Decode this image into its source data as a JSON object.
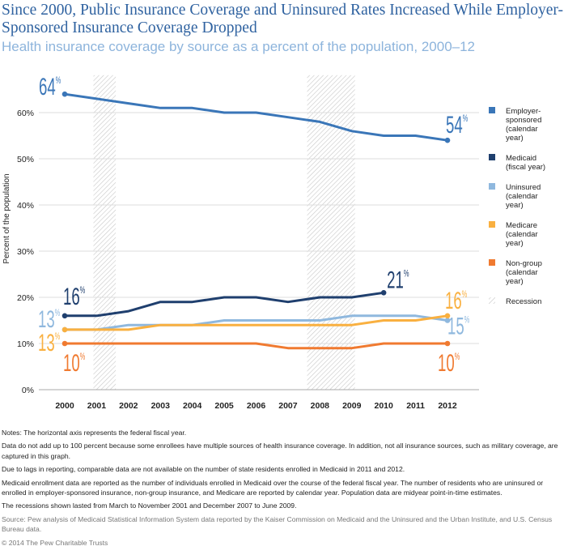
{
  "title": "Since 2000, Public Insurance Coverage and Uninsured Rates Increased While Employer-Sponsored Insurance Coverage Dropped",
  "subtitle": "Health insurance coverage by source as a percent of the population, 2000–12",
  "chart_data": {
    "type": "line",
    "title": "Since 2000, Public Insurance Coverage and Uninsured Rates Increased While Employer-Sponsored Insurance Coverage Dropped",
    "subtitle": "Health insurance coverage by source as a percent of the population, 2000–12",
    "xlabel": "",
    "ylabel": "Percent of the population",
    "x": [
      2000,
      2001,
      2002,
      2003,
      2004,
      2005,
      2006,
      2007,
      2008,
      2009,
      2010,
      2011,
      2012
    ],
    "xtick_labels": [
      "2000",
      "2001",
      "2002",
      "2003",
      "2004",
      "2005",
      "2006",
      "2007",
      "2008",
      "2009",
      "2010",
      "2011",
      "2012"
    ],
    "ylim": [
      0,
      66
    ],
    "yticks": [
      0,
      10,
      20,
      30,
      40,
      50,
      60
    ],
    "ytick_labels": [
      "0%",
      "10%",
      "20%",
      "30%",
      "40%",
      "50%",
      "60%"
    ],
    "grid": "horizontal",
    "legend_position": "right",
    "series": [
      {
        "name": "Employer-sponsored (calendar year)",
        "legend_lines": [
          "Employer-",
          "sponsored",
          "(calendar",
          "year)"
        ],
        "color": "#3a76b8",
        "values": [
          64,
          63,
          62,
          61,
          61,
          60,
          60,
          59,
          58,
          56,
          55,
          55,
          54
        ],
        "start_label": "64",
        "end_label": "54"
      },
      {
        "name": "Medicaid (fiscal year)",
        "legend_lines": [
          "Medicaid",
          "(fiscal year)"
        ],
        "color": "#1f3f6e",
        "values": [
          16,
          16,
          17,
          19,
          19,
          20,
          20,
          19,
          20,
          20,
          21,
          null,
          null
        ],
        "start_label": "16",
        "end_label": "21"
      },
      {
        "name": "Uninsured (calendar year)",
        "legend_lines": [
          "Uninsured",
          "(calendar",
          "year)"
        ],
        "color": "#8fb8de",
        "values": [
          13,
          13,
          14,
          14,
          14,
          15,
          15,
          15,
          15,
          16,
          16,
          16,
          15
        ],
        "start_label": "13",
        "end_label": "15"
      },
      {
        "name": "Medicare (calendar year)",
        "legend_lines": [
          "Medicare",
          "(calendar",
          "year)"
        ],
        "color": "#f9b040",
        "values": [
          13,
          13,
          13,
          14,
          14,
          14,
          14,
          14,
          14,
          14,
          15,
          15,
          16
        ],
        "start_label": "13",
        "end_label": "16"
      },
      {
        "name": "Non-group (calendar year)",
        "legend_lines": [
          "Non-group",
          "(calendar",
          "year)"
        ],
        "color": "#f07a30",
        "values": [
          10,
          10,
          10,
          10,
          10,
          10,
          10,
          9,
          9,
          9,
          10,
          10,
          10
        ],
        "start_label": "10",
        "end_label": "10"
      }
    ],
    "recession": {
      "name": "Recession",
      "periods": [
        [
          2000.9,
          2001.6
        ],
        [
          2007.6,
          2009.1
        ]
      ]
    },
    "percent_sign": "%"
  },
  "notes": [
    "Notes: The horizontal axis represents the federal fiscal year.",
    "Data do not add up to 100 percent because some enrollees have multiple sources of health insurance coverage. In addition, not all insurance sources, such as military coverage, are captured in this graph.",
    "Due to lags in reporting, comparable data are not available on the number of state residents enrolled in Medicaid in 2011 and 2012.",
    "Medicaid enrollment data are reported as the number of individuals enrolled in Medicaid over the course of the federal fiscal year. The number of residents who are uninsured or enrolled in employer-sponsored insurance, non-group insurance, and Medicare are reported by calendar year. Population data are midyear point-in-time estimates.",
    "The recessions shown lasted from March to November 2001 and December 2007 to June 2009."
  ],
  "source": "Source: Pew analysis of Medicaid Statistical Information System data reported by the Kaiser Commission on Medicaid and the Uninsured and the Urban Institute, and U.S. Census Bureau data.",
  "copyright": "© 2014 The Pew Charitable Trusts"
}
